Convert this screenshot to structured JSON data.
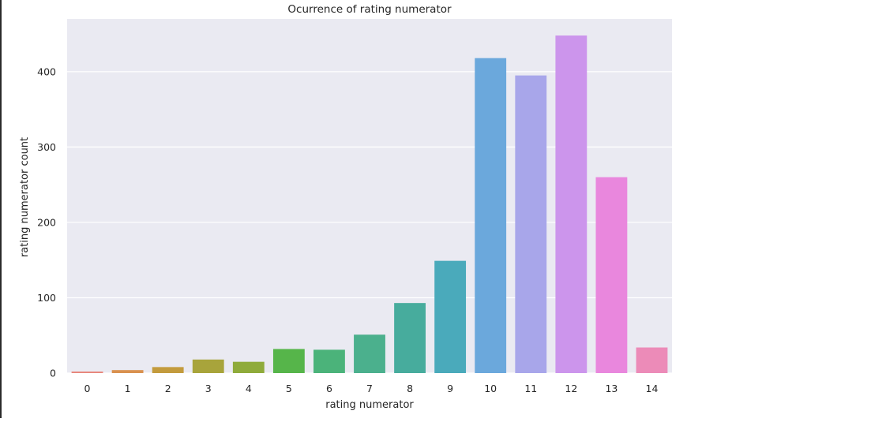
{
  "chart_data": {
    "type": "bar",
    "title": "Ocurrence of rating numerator",
    "xlabel": "rating numerator",
    "ylabel": "rating numerator count",
    "categories": [
      "0",
      "1",
      "2",
      "3",
      "4",
      "5",
      "6",
      "7",
      "8",
      "9",
      "10",
      "11",
      "12",
      "13",
      "14"
    ],
    "values": [
      2,
      4,
      8,
      18,
      15,
      32,
      31,
      51,
      93,
      149,
      418,
      395,
      448,
      260,
      34
    ],
    "yticks": [
      "0",
      "100",
      "200",
      "300",
      "400"
    ],
    "ylim": [
      0,
      470
    ],
    "grid": true,
    "legend": "none",
    "colors": [
      "#e8857a",
      "#d9914f",
      "#c39b3d",
      "#a8a43b",
      "#8fab3b",
      "#56b54a",
      "#4bb37a",
      "#4bb08d",
      "#47ac9d",
      "#4aaabb",
      "#6ba8dc",
      "#a8a6ea",
      "#cc95ec",
      "#e987dd",
      "#ec8bb8"
    ],
    "plot_background": "#eaeaf2"
  }
}
